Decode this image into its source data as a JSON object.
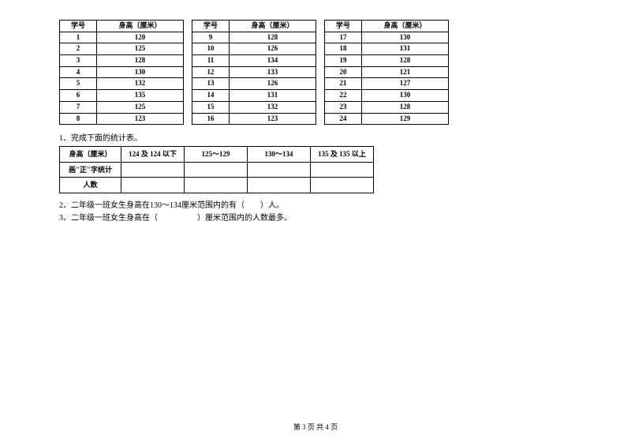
{
  "tables": {
    "header_id": "学号",
    "header_height": "身高（厘米）",
    "groups": [
      {
        "rows": [
          [
            "1",
            "120"
          ],
          [
            "2",
            "125"
          ],
          [
            "3",
            "128"
          ],
          [
            "4",
            "130"
          ],
          [
            "5",
            "132"
          ],
          [
            "6",
            "135"
          ],
          [
            "7",
            "125"
          ],
          [
            "8",
            "123"
          ]
        ]
      },
      {
        "rows": [
          [
            "9",
            "128"
          ],
          [
            "10",
            "126"
          ],
          [
            "11",
            "134"
          ],
          [
            "12",
            "133"
          ],
          [
            "13",
            "126"
          ],
          [
            "14",
            "131"
          ],
          [
            "15",
            "132"
          ],
          [
            "16",
            "123"
          ]
        ]
      },
      {
        "rows": [
          [
            "17",
            "130"
          ],
          [
            "18",
            "131"
          ],
          [
            "19",
            "128"
          ],
          [
            "20",
            "121"
          ],
          [
            "21",
            "127"
          ],
          [
            "22",
            "130"
          ],
          [
            "23",
            "128"
          ],
          [
            "24",
            "129"
          ]
        ]
      }
    ]
  },
  "q1": {
    "label": "1、完成下面的统计表。",
    "summary_headers": [
      "身高（厘米）",
      "124 及 124 以下",
      "125～129",
      "130～134",
      "135 及 135 以上"
    ],
    "row1_label": "画\"正\"字统计",
    "row2_label": "人数"
  },
  "q2": "2、二年级一班女生身高在130～134厘米范围内的有（　　）人。",
  "q3": "3、二年级一班女生身高在（　　　　　）厘米范围内的人数最多。",
  "footer": "第 3 页 共 4 页",
  "colors": {
    "border": "#000000",
    "text": "#000000",
    "bg": "#ffffff"
  }
}
